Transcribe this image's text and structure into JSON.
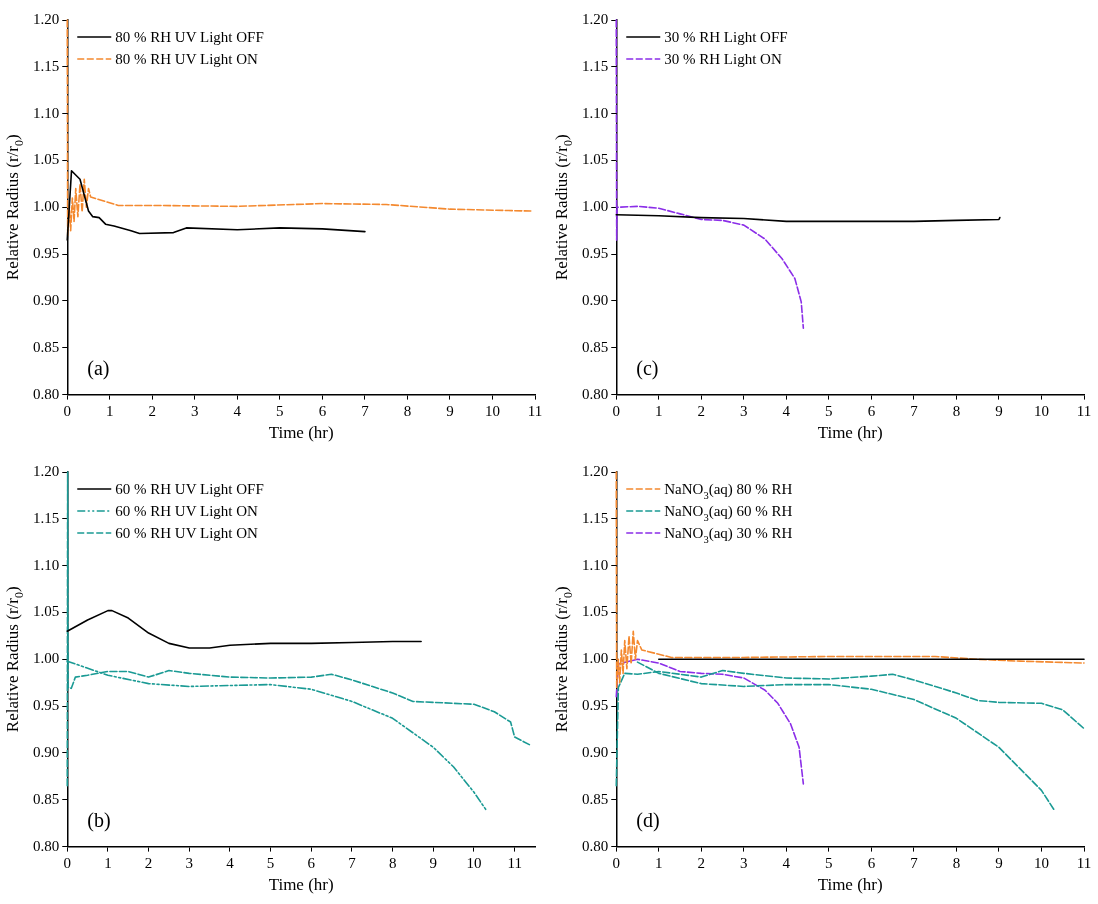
{
  "chart_data": [
    {
      "type": "line",
      "xlabel": "Time (hr)",
      "ylabel": "Relative Radius (r/r$_{0}$)",
      "xlim": [
        0,
        11
      ],
      "xticks": [
        0,
        1,
        2,
        3,
        4,
        5,
        6,
        7,
        8,
        9,
        10,
        11
      ],
      "ylim": [
        0.8,
        1.2
      ],
      "yticks": [
        {
          "value": 0.8,
          "label": "0.80"
        },
        {
          "value": 0.85,
          "label": "0.85"
        },
        {
          "value": 0.9,
          "label": "0.90"
        },
        {
          "value": 0.95,
          "label": "0.95"
        },
        {
          "value": 1.0,
          "label": "1.00"
        },
        {
          "value": 1.05,
          "label": "1.05"
        },
        {
          "value": 1.1,
          "label": "1.10"
        },
        {
          "value": 1.15,
          "label": "1.15"
        },
        {
          "value": 1.2,
          "label": "1.20"
        }
      ],
      "grid": false,
      "legend": "top left",
      "annotations": [
        "(a)"
      ],
      "series": [
        {
          "name": "80 % RH UV Light OFF",
          "color": "#000000",
          "line_style": "solid",
          "x": [
            0,
            0.1,
            0.3,
            0.5,
            0.6,
            0.75,
            0.9,
            1.1,
            1.5,
            1.7,
            2.5,
            2.8,
            4,
            5,
            6,
            7
          ],
          "values": [
            0.965,
            1.039,
            1.03,
            0.996,
            0.99,
            0.989,
            0.982,
            0.98,
            0.975,
            0.972,
            0.973,
            0.978,
            0.976,
            0.978,
            0.977,
            0.974
          ]
        },
        {
          "name": "80 % RH UV Light ON",
          "color": "#f4892f",
          "line_style": "dashed",
          "x": [
            0,
            0.01,
            0.05,
            0.08,
            0.12,
            0.16,
            0.2,
            0.25,
            0.3,
            0.35,
            0.4,
            0.45,
            0.5,
            0.55,
            1.2,
            2,
            4,
            6,
            7.5,
            9,
            10.9
          ],
          "values": [
            1.2,
            0.97,
            1.0,
            0.975,
            1.01,
            0.985,
            1.02,
            0.99,
            1.025,
            0.995,
            1.03,
            1.0,
            1.02,
            1.011,
            1.002,
            1.002,
            1.001,
            1.004,
            1.003,
            0.998,
            0.996
          ]
        }
      ]
    },
    {
      "type": "line",
      "xlabel": "Time (hr)",
      "ylabel": "Relative Radius (r/r$_{0}$)",
      "xlim": [
        0,
        11
      ],
      "xticks": [
        0,
        1,
        2,
        3,
        4,
        5,
        6,
        7,
        8,
        9,
        10,
        11
      ],
      "ylim": [
        0.8,
        1.2
      ],
      "yticks": [
        {
          "value": 0.8,
          "label": "0.80"
        },
        {
          "value": 0.85,
          "label": "0.85"
        },
        {
          "value": 0.9,
          "label": "0.90"
        },
        {
          "value": 0.95,
          "label": "0.95"
        },
        {
          "value": 1.0,
          "label": "1.00"
        },
        {
          "value": 1.05,
          "label": "1.05"
        },
        {
          "value": 1.1,
          "label": "1.10"
        },
        {
          "value": 1.15,
          "label": "1.15"
        },
        {
          "value": 1.2,
          "label": "1.20"
        }
      ],
      "grid": false,
      "legend": "top left",
      "annotations": [
        "(c)"
      ],
      "series": [
        {
          "name": "30 % RH Light OFF",
          "color": "#000000",
          "line_style": "solid",
          "x": [
            0,
            1,
            2,
            3,
            4,
            5,
            6,
            7,
            8,
            9,
            9.02
          ],
          "values": [
            0.992,
            0.991,
            0.989,
            0.988,
            0.985,
            0.985,
            0.985,
            0.985,
            0.986,
            0.987,
            0.989
          ]
        },
        {
          "name": "30 % RH Light ON",
          "color": "#8b2ee8",
          "line_style": "dashed",
          "x": [
            0,
            0.01,
            0.02,
            0.5,
            1,
            1.5,
            2,
            2.5,
            3,
            3.5,
            3.9,
            4.2,
            4.35,
            4.4
          ],
          "values": [
            1.2,
            0.965,
            1.0,
            1.001,
            0.999,
            0.993,
            0.987,
            0.986,
            0.981,
            0.966,
            0.945,
            0.924,
            0.899,
            0.871
          ]
        }
      ]
    },
    {
      "type": "line",
      "xlabel": "Time (hr)",
      "ylabel": "Relative Radius (r/r$_{0}$)",
      "xlim": [
        0,
        11.5
      ],
      "xticks": [
        0,
        1,
        2,
        3,
        4,
        5,
        6,
        7,
        8,
        9,
        10,
        11
      ],
      "ylim": [
        0.8,
        1.2
      ],
      "yticks": [
        {
          "value": 0.8,
          "label": "0.80"
        },
        {
          "value": 0.85,
          "label": "0.85"
        },
        {
          "value": 0.9,
          "label": "0.90"
        },
        {
          "value": 0.95,
          "label": "0.95"
        },
        {
          "value": 1.0,
          "label": "1.00"
        },
        {
          "value": 1.05,
          "label": "1.05"
        },
        {
          "value": 1.1,
          "label": "1.10"
        },
        {
          "value": 1.15,
          "label": "1.15"
        },
        {
          "value": 1.2,
          "label": "1.20"
        }
      ],
      "grid": false,
      "legend": "top left",
      "annotations": [
        "(b)"
      ],
      "series": [
        {
          "name": "60 % RH UV Light OFF",
          "color": "#000000",
          "line_style": "solid",
          "x": [
            0,
            0.5,
            1,
            1.1,
            1.5,
            2,
            2.5,
            3,
            3.5,
            4,
            5,
            6,
            7,
            8,
            8.7
          ],
          "values": [
            1.03,
            1.042,
            1.052,
            1.052,
            1.044,
            1.028,
            1.017,
            1.012,
            1.012,
            1.015,
            1.017,
            1.017,
            1.018,
            1.019,
            1.019
          ]
        },
        {
          "name": "60 % RH UV Light ON",
          "color": "#1a9a94",
          "line_style": "dashdot",
          "x": [
            0,
            1,
            2,
            3,
            4,
            5,
            6,
            7,
            8,
            9,
            9.5,
            10,
            10.3
          ],
          "values": [
            0.998,
            0.983,
            0.974,
            0.971,
            0.972,
            0.973,
            0.968,
            0.955,
            0.937,
            0.906,
            0.885,
            0.858,
            0.839
          ]
        },
        {
          "name": "60 % RH UV Light ON",
          "color": "#1a9a94",
          "line_style": "dashed",
          "x": [
            0,
            0.01,
            0.02,
            0.1,
            0.2,
            0.5,
            1,
            1.5,
            2,
            2.5,
            3,
            4,
            5,
            6,
            6.5,
            7,
            8,
            8.5,
            9,
            10,
            10.5,
            10.9,
            11,
            11.4
          ],
          "values": [
            0.865,
            1.2,
            0.97,
            0.969,
            0.981,
            0.983,
            0.987,
            0.987,
            0.981,
            0.988,
            0.985,
            0.981,
            0.98,
            0.981,
            0.984,
            0.978,
            0.964,
            0.955,
            0.954,
            0.952,
            0.944,
            0.933,
            0.917,
            0.908
          ]
        }
      ]
    },
    {
      "type": "line",
      "xlabel": "Time (hr)",
      "ylabel": "Relative Radius (r/r$_{0}$)",
      "xlim": [
        0,
        11
      ],
      "xticks": [
        0,
        1,
        2,
        3,
        4,
        5,
        6,
        7,
        8,
        9,
        10,
        11
      ],
      "ylim": [
        0.8,
        1.2
      ],
      "yticks": [
        {
          "value": 0.8,
          "label": "0.80"
        },
        {
          "value": 0.85,
          "label": "0.85"
        },
        {
          "value": 0.9,
          "label": "0.90"
        },
        {
          "value": 0.95,
          "label": "0.95"
        },
        {
          "value": 1.0,
          "label": "1.00"
        },
        {
          "value": 1.05,
          "label": "1.05"
        },
        {
          "value": 1.1,
          "label": "1.10"
        },
        {
          "value": 1.15,
          "label": "1.15"
        },
        {
          "value": 1.2,
          "label": "1.20"
        }
      ],
      "grid": false,
      "legend": "top left",
      "annotations": [
        "(d)"
      ],
      "series": [
        {
          "color": "#000000",
          "line_style": "solid",
          "x": [
            1,
            11
          ],
          "values": [
            1.0,
            1.0
          ]
        },
        {
          "name": "NaNO$_{3}$(aq) 80 % RH",
          "color": "#f4892f",
          "line_style": "dashed",
          "x": [
            0,
            0.01,
            0.05,
            0.08,
            0.12,
            0.16,
            0.2,
            0.25,
            0.3,
            0.35,
            0.4,
            0.45,
            0.5,
            0.6,
            1.3,
            3,
            5,
            6,
            7.5,
            8.5,
            9.5,
            11
          ],
          "values": [
            1.2,
            0.97,
            1.0,
            0.975,
            1.01,
            0.985,
            1.02,
            0.99,
            1.025,
            0.995,
            1.03,
            1.0,
            1.02,
            1.01,
            1.002,
            1.002,
            1.003,
            1.003,
            1.003,
            1.0,
            0.998,
            0.996
          ]
        },
        {
          "name": "NaNO$_{3}$(aq) 60 % RH",
          "color": "#1a9a94",
          "line_style": "dashed",
          "x": [
            0,
            0.05,
            0.2,
            0.5,
            1,
            2,
            2.5,
            3,
            4,
            5,
            6,
            6.5,
            7,
            8,
            8.5,
            9,
            10,
            10.5,
            11
          ],
          "values": [
            0.865,
            0.97,
            0.985,
            0.984,
            0.987,
            0.981,
            0.988,
            0.985,
            0.98,
            0.979,
            0.982,
            0.984,
            0.978,
            0.964,
            0.956,
            0.954,
            0.953,
            0.946,
            0.926
          ]
        },
        {
          "color": "#1a9a94",
          "line_style": "dashed",
          "x": [
            0.5,
            1,
            2,
            3,
            4,
            5,
            6,
            7,
            8,
            9,
            10,
            10.3
          ],
          "values": [
            0.997,
            0.985,
            0.974,
            0.971,
            0.973,
            0.973,
            0.968,
            0.957,
            0.937,
            0.906,
            0.86,
            0.839
          ]
        },
        {
          "name": "NaNO$_{3}$(aq) 30 % RH",
          "color": "#8b2ee8",
          "line_style": "dashed",
          "x": [
            0,
            0.05,
            0.5,
            1,
            1.5,
            2,
            2.5,
            3,
            3.5,
            3.8,
            4.1,
            4.3,
            4.4
          ],
          "values": [
            0.96,
            0.995,
            1.0,
            0.996,
            0.987,
            0.985,
            0.984,
            0.98,
            0.967,
            0.953,
            0.931,
            0.906,
            0.867
          ]
        }
      ]
    }
  ]
}
